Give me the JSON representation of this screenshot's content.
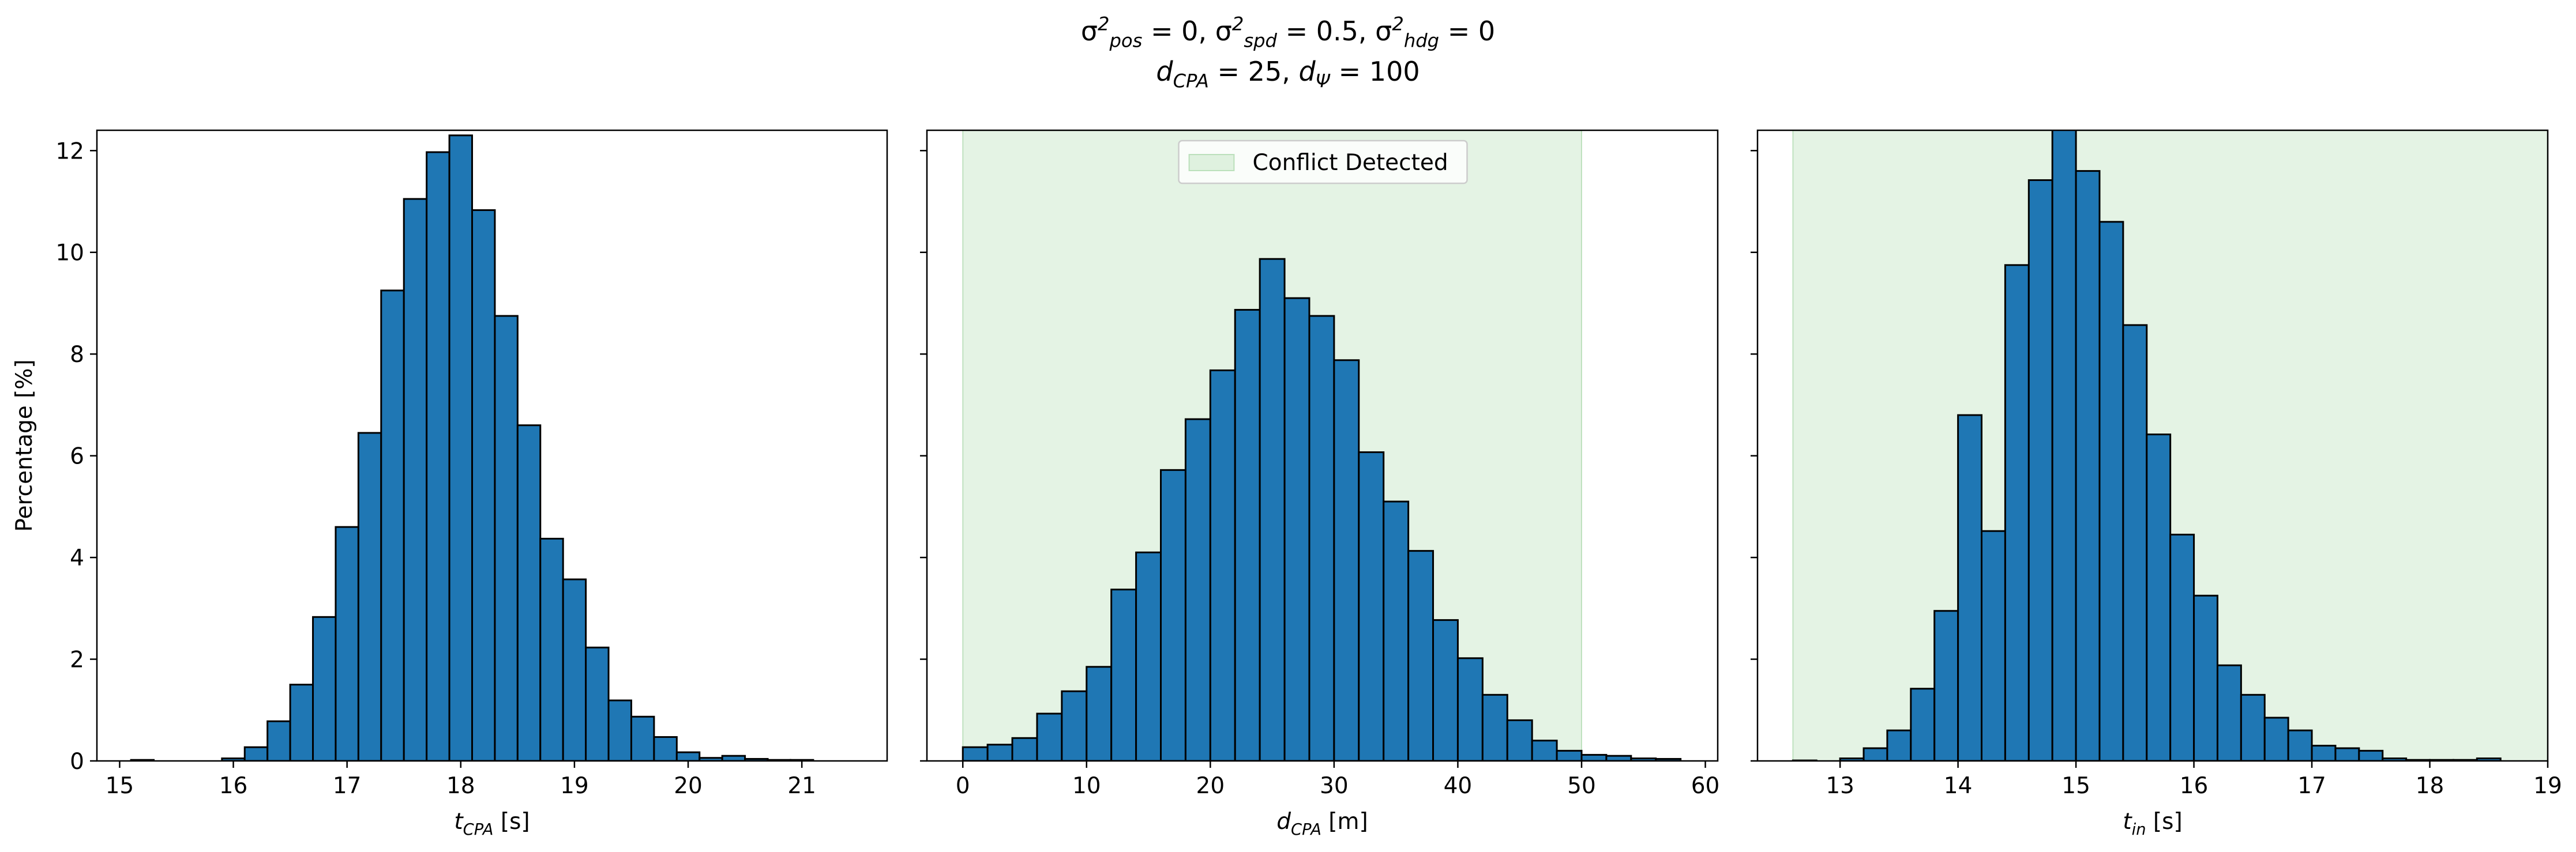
{
  "figure": {
    "suptitle": {
      "line1": [
        {
          "t": "σ",
          "s": "n"
        },
        {
          "t": "2",
          "s": "sup"
        },
        {
          "t": "pos",
          "s": "sub"
        },
        {
          "t": " = 0, ",
          "s": "n"
        },
        {
          "t": "σ",
          "s": "n"
        },
        {
          "t": "2",
          "s": "sup"
        },
        {
          "t": "spd",
          "s": "sub"
        },
        {
          "t": " = 0.5, ",
          "s": "n"
        },
        {
          "t": "σ",
          "s": "n"
        },
        {
          "t": "2",
          "s": "sup"
        },
        {
          "t": "hdg",
          "s": "sub"
        },
        {
          "t": " = 0",
          "s": "n"
        }
      ],
      "line2": [
        {
          "t": "d",
          "s": "i"
        },
        {
          "t": "CPA",
          "s": "sub"
        },
        {
          "t": " = 25, ",
          "s": "n"
        },
        {
          "t": "d",
          "s": "i"
        },
        {
          "t": "Ψ",
          "s": "sub"
        },
        {
          "t": " = 100",
          "s": "n"
        }
      ]
    },
    "shared_ylabel": "Percentage [%]",
    "colors": {
      "bar_fill": "#1f77b4",
      "bar_edge": "#000000",
      "conflict_fill": "#2ca02c"
    }
  },
  "chart_data": [
    {
      "type": "bar",
      "xlabel": [
        {
          "t": "t",
          "s": "i"
        },
        {
          "t": "CPA",
          "s": "sub"
        },
        {
          "t": " [s]",
          "s": "n"
        }
      ],
      "ylabel": "Percentage [%]",
      "xlim": [
        14.8,
        21.75
      ],
      "ylim": [
        0,
        12.4
      ],
      "xticks": [
        15,
        16,
        17,
        18,
        19,
        20,
        21
      ],
      "yticks": [
        0,
        2,
        4,
        6,
        8,
        10,
        12
      ],
      "bin_edges": [
        15.1,
        15.3,
        15.5,
        15.7,
        15.9,
        16.1,
        16.3,
        16.5,
        16.7,
        16.9,
        17.1,
        17.3,
        17.5,
        17.7,
        17.9,
        18.1,
        18.3,
        18.5,
        18.7,
        18.9,
        19.1,
        19.3,
        19.5,
        19.7,
        19.9,
        20.1,
        20.3,
        20.5,
        20.7,
        20.9,
        21.1,
        21.3,
        21.5
      ],
      "values": [
        0.02,
        0.0,
        0.0,
        0.0,
        0.05,
        0.27,
        0.78,
        1.5,
        2.83,
        4.6,
        6.45,
        9.25,
        11.05,
        11.97,
        12.3,
        10.83,
        8.75,
        6.6,
        4.37,
        3.57,
        2.23,
        1.19,
        0.87,
        0.47,
        0.17,
        0.06,
        0.1,
        0.04,
        0.02,
        0.02,
        0.0,
        0.0
      ],
      "shaded_region": null,
      "legend": null
    },
    {
      "type": "bar",
      "xlabel": [
        {
          "t": "d",
          "s": "i"
        },
        {
          "t": "CPA",
          "s": "sub"
        },
        {
          "t": " [m]",
          "s": "n"
        }
      ],
      "ylabel": "",
      "xlim": [
        -2.9,
        61.0
      ],
      "ylim": [
        0,
        12.4
      ],
      "xticks": [
        0,
        10,
        20,
        30,
        40,
        50,
        60
      ],
      "yticks": [
        0,
        2,
        4,
        6,
        8,
        10,
        12
      ],
      "bin_edges": [
        0,
        2,
        4,
        6,
        8,
        10,
        12,
        14,
        16,
        18,
        20,
        22,
        24,
        26,
        28,
        30,
        32,
        34,
        36,
        38,
        40,
        42,
        44,
        46,
        48,
        50,
        52,
        54,
        56,
        58
      ],
      "values": [
        0.27,
        0.32,
        0.45,
        0.93,
        1.37,
        1.85,
        3.37,
        4.1,
        5.72,
        6.72,
        7.68,
        8.87,
        9.87,
        9.1,
        8.75,
        7.88,
        6.07,
        5.1,
        4.13,
        2.77,
        2.02,
        1.3,
        0.8,
        0.4,
        0.2,
        0.12,
        0.1,
        0.05,
        0.04
      ],
      "shaded_region": {
        "x0": 0,
        "x1": 50
      },
      "legend": {
        "label": "Conflict Detected",
        "position": "upper center"
      }
    },
    {
      "type": "bar",
      "xlabel": [
        {
          "t": "t",
          "s": "i"
        },
        {
          "t": "in",
          "s": "sub"
        },
        {
          "t": " [s]",
          "s": "n"
        }
      ],
      "ylabel": "",
      "xlim": [
        12.3,
        19.0
      ],
      "ylim": [
        0,
        12.4
      ],
      "xticks": [
        13,
        14,
        15,
        16,
        17,
        18,
        19
      ],
      "yticks": [
        0,
        2,
        4,
        6,
        8,
        10,
        12
      ],
      "bin_edges": [
        12.6,
        12.8,
        13.0,
        13.2,
        13.4,
        13.6,
        13.8,
        14.0,
        14.2,
        14.4,
        14.6,
        14.8,
        15.0,
        15.2,
        15.4,
        15.6,
        15.8,
        16.0,
        16.2,
        16.4,
        16.6,
        16.8,
        17.0,
        17.2,
        17.4,
        17.6,
        17.8,
        18.0,
        18.2,
        18.4,
        18.6,
        18.8
      ],
      "values": [
        0.01,
        0.0,
        0.05,
        0.25,
        0.6,
        1.42,
        2.95,
        6.8,
        4.52,
        9.75,
        11.42,
        12.43,
        11.6,
        10.6,
        8.57,
        6.42,
        4.45,
        3.25,
        1.88,
        1.3,
        0.85,
        0.6,
        0.3,
        0.25,
        0.2,
        0.05,
        0.02,
        0.02,
        0.02,
        0.05,
        0.0
      ],
      "shaded_region": {
        "x0": 12.6,
        "x1": 19.0
      },
      "legend": null
    }
  ]
}
